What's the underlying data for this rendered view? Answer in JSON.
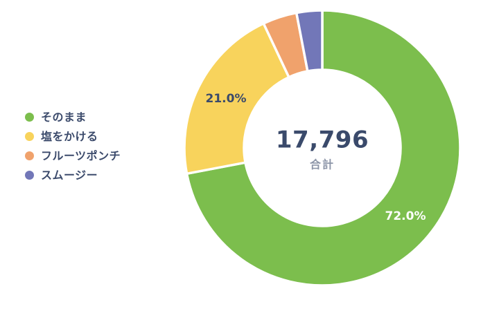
{
  "page": {
    "background": "#ffffff"
  },
  "chart_data": {
    "type": "pie",
    "subtype": "donut",
    "title": "",
    "categories": [
      "そのまま",
      "塩をかける",
      "フルーツポンチ",
      "スムージー"
    ],
    "values": [
      72.0,
      21.0,
      4.0,
      3.0
    ],
    "unit": "percent",
    "colors": [
      "#7CBE4D",
      "#F8D35C",
      "#F0A26C",
      "#7277B8"
    ],
    "slice_labels": [
      {
        "text": "72.0%",
        "show": true,
        "color": "#FFFFFF"
      },
      {
        "text": "21.0%",
        "show": true,
        "color": "#3B4A6B"
      },
      {
        "text": "",
        "show": false,
        "color": ""
      },
      {
        "text": "",
        "show": false,
        "color": ""
      }
    ],
    "total": {
      "value": "17,796",
      "label": "合計"
    },
    "start_angle_deg": 0,
    "direction": "clockwise",
    "inner_radius_ratio": 0.57,
    "legend_position": "left",
    "style": {
      "legend_text_color": "#3B4A6B",
      "total_value_color": "#3A4A6B",
      "total_label_color": "#8C95A8"
    }
  }
}
